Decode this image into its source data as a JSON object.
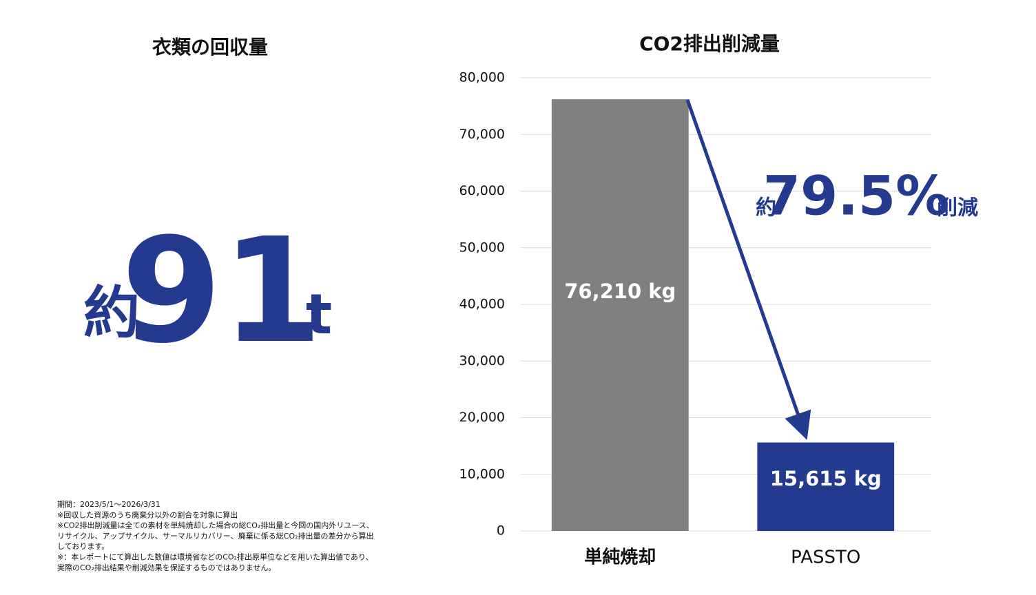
{
  "collection": {
    "title": "衣類の回収量",
    "prefix": "約",
    "value": 91,
    "unit": "t"
  },
  "notes": [
    "期間：2023/5/1〜2026/3/31",
    "※回収した資源のうち廃棄分以外の割合を対象に算出",
    "※CO2排出削減量は全ての素材を単純焼却した場合の総CO₂排出量と今回の国内外リユース、",
    "リサイクル、アップサイクル、サーマルリカバリー、廃棄に係る総CO₂排出量の差分から算出",
    "しております。",
    "※：本レポートにて算出した数値は環境省などのCO₂排出原単位などを用いた算出値であり、",
    "実際のCO₂排出結果や削減効果を保証するものではありません。"
  ],
  "chart_data": {
    "type": "bar",
    "title": "CO2排出削減量",
    "categories": [
      "単純焼却",
      "PASSTO"
    ],
    "values": [
      76210,
      15615
    ],
    "value_labels": [
      "76,210 kg",
      "15,615 kg"
    ],
    "colors": [
      "#808080",
      "#233a8f"
    ],
    "ylim": [
      0,
      80000
    ],
    "yticks": [
      0,
      {
        "value": 10000,
        "label": "10,000"
      },
      {
        "value": 20000,
        "label": "20,000"
      },
      {
        "value": 30000,
        "label": "30,000"
      },
      {
        "value": 40000,
        "label": "40,000"
      },
      {
        "value": 50000,
        "label": "50,000"
      },
      {
        "value": 60000,
        "label": "60,000"
      },
      {
        "value": 70000,
        "label": "70,000"
      },
      {
        "value": 80000,
        "label": "80,000"
      }
    ],
    "grid": true,
    "annotation": {
      "prefix": "約",
      "value": "79.5%",
      "suffix": "削減"
    }
  }
}
